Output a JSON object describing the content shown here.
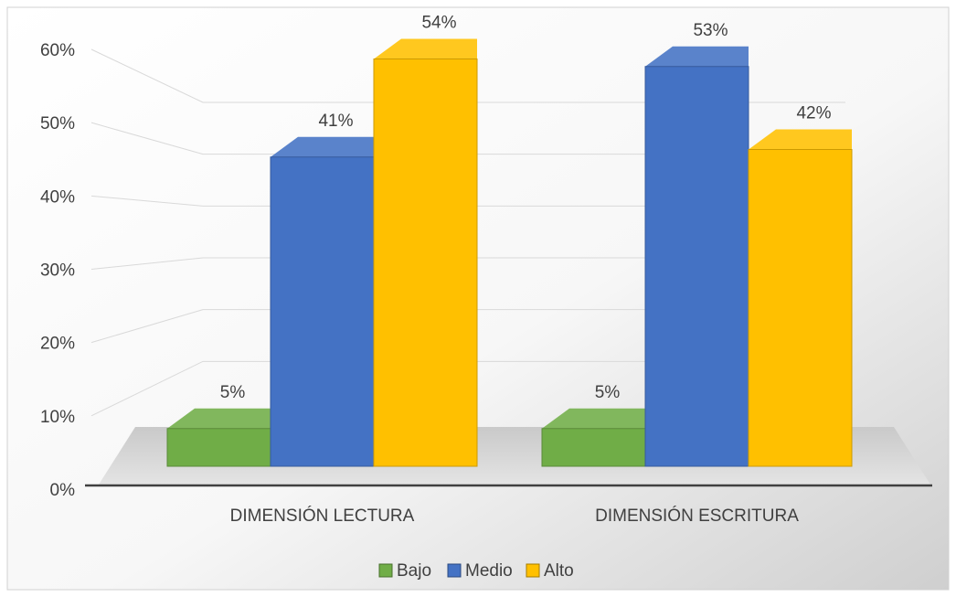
{
  "chart_data": {
    "type": "bar",
    "categories": [
      "DIMENSIÓN LECTURA",
      "DIMENSIÓN ESCRITURA"
    ],
    "series": [
      {
        "name": "Bajo",
        "values": [
          5,
          5
        ],
        "labels": [
          "5%",
          "5%"
        ],
        "color": "#70ad47"
      },
      {
        "name": "Medio",
        "values": [
          41,
          53
        ],
        "labels": [
          "41%",
          "53%"
        ],
        "color": "#4472c4"
      },
      {
        "name": "Alto",
        "values": [
          54,
          42
        ],
        "labels": [
          "54%",
          "42%"
        ],
        "color": "#ffc000"
      }
    ],
    "y_ticks": [
      "0%",
      "10%",
      "20%",
      "30%",
      "40%",
      "50%",
      "60%"
    ],
    "ylim": [
      0,
      60
    ],
    "grid": true,
    "legend": "bottom",
    "style": "3d-clustered-column"
  }
}
